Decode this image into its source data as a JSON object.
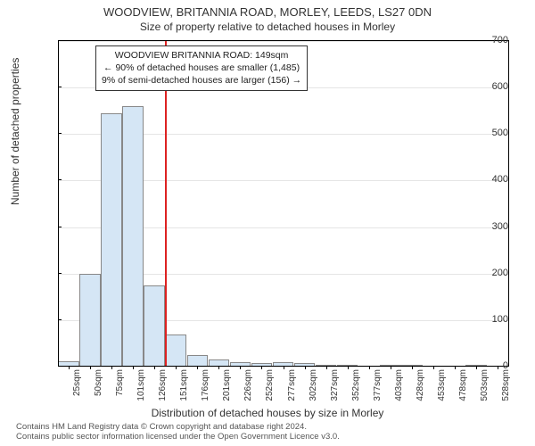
{
  "title_main": "WOODVIEW, BRITANNIA ROAD, MORLEY, LEEDS, LS27 0DN",
  "title_sub": "Size of property relative to detached houses in Morley",
  "y_label": "Number of detached properties",
  "x_label": "Distribution of detached houses by size in Morley",
  "footer_line1": "Contains HM Land Registry data © Crown copyright and database right 2024.",
  "footer_line2": "Contains public sector information licensed under the Open Government Licence v3.0.",
  "info_box": {
    "line1": "WOODVIEW BRITANNIA ROAD: 149sqm",
    "line2": "← 90% of detached houses are smaller (1,485)",
    "line3": "9% of semi-detached houses are larger (156) →"
  },
  "chart": {
    "type": "histogram",
    "ylim": [
      0,
      700
    ],
    "ytick_step": 100,
    "yticks": [
      0,
      100,
      200,
      300,
      400,
      500,
      600,
      700
    ],
    "x_categories": [
      "25sqm",
      "50sqm",
      "75sqm",
      "101sqm",
      "126sqm",
      "151sqm",
      "176sqm",
      "201sqm",
      "226sqm",
      "252sqm",
      "277sqm",
      "302sqm",
      "327sqm",
      "352sqm",
      "377sqm",
      "403sqm",
      "428sqm",
      "453sqm",
      "478sqm",
      "503sqm",
      "528sqm"
    ],
    "values": [
      12,
      200,
      545,
      560,
      175,
      70,
      25,
      15,
      10,
      8,
      9,
      7,
      4,
      2,
      0,
      3,
      1,
      0,
      0,
      1,
      0
    ],
    "bar_fill": "#d5e6f5",
    "bar_border": "#888888",
    "background_color": "#ffffff",
    "grid_color": "#e5e5e5",
    "marker_line_color": "#dd2222",
    "marker_x_index": 5,
    "title_fontsize": 13,
    "label_fontsize": 12,
    "tick_fontsize": 11
  }
}
